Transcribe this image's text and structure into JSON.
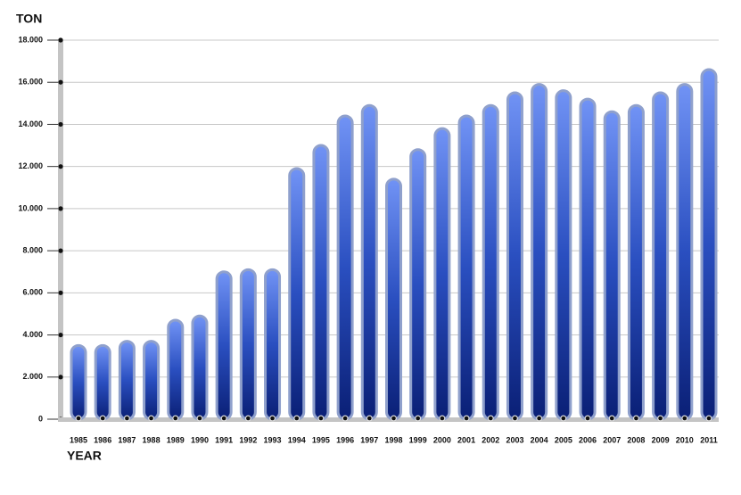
{
  "chart_data": {
    "type": "bar",
    "y_label": "TON",
    "x_label": "YEAR",
    "categories": [
      "1985",
      "1986",
      "1987",
      "1988",
      "1989",
      "1990",
      "1991",
      "1992",
      "1993",
      "1994",
      "1995",
      "1996",
      "1997",
      "1998",
      "1999",
      "2000",
      "2001",
      "2002",
      "2003",
      "2004",
      "2005",
      "2006",
      "2007",
      "2008",
      "2009",
      "2010",
      "2011"
    ],
    "values": [
      3500,
      3500,
      3700,
      3700,
      4700,
      4900,
      7000,
      7100,
      7100,
      11900,
      13000,
      14400,
      14900,
      11400,
      12800,
      13800,
      14400,
      14900,
      15500,
      15900,
      15600,
      15200,
      14600,
      14900,
      15500,
      15900,
      16600
    ],
    "color": "#1f45b5",
    "ylim": [
      0,
      18000
    ],
    "yticks": [
      0,
      {
        "value": 2000,
        "label": "2.000"
      },
      {
        "value": 4000,
        "label": "4.000"
      },
      {
        "value": 6000,
        "label": "6.000"
      },
      {
        "value": 8000,
        "label": "8.000"
      },
      {
        "value": 10000,
        "label": "10.000"
      },
      {
        "value": 12000,
        "label": "12.000"
      },
      {
        "value": 14000,
        "label": "14.000"
      },
      {
        "value": 16000,
        "label": "16.000"
      },
      {
        "value": 18000,
        "label": "18.000"
      }
    ],
    "grid": true
  }
}
